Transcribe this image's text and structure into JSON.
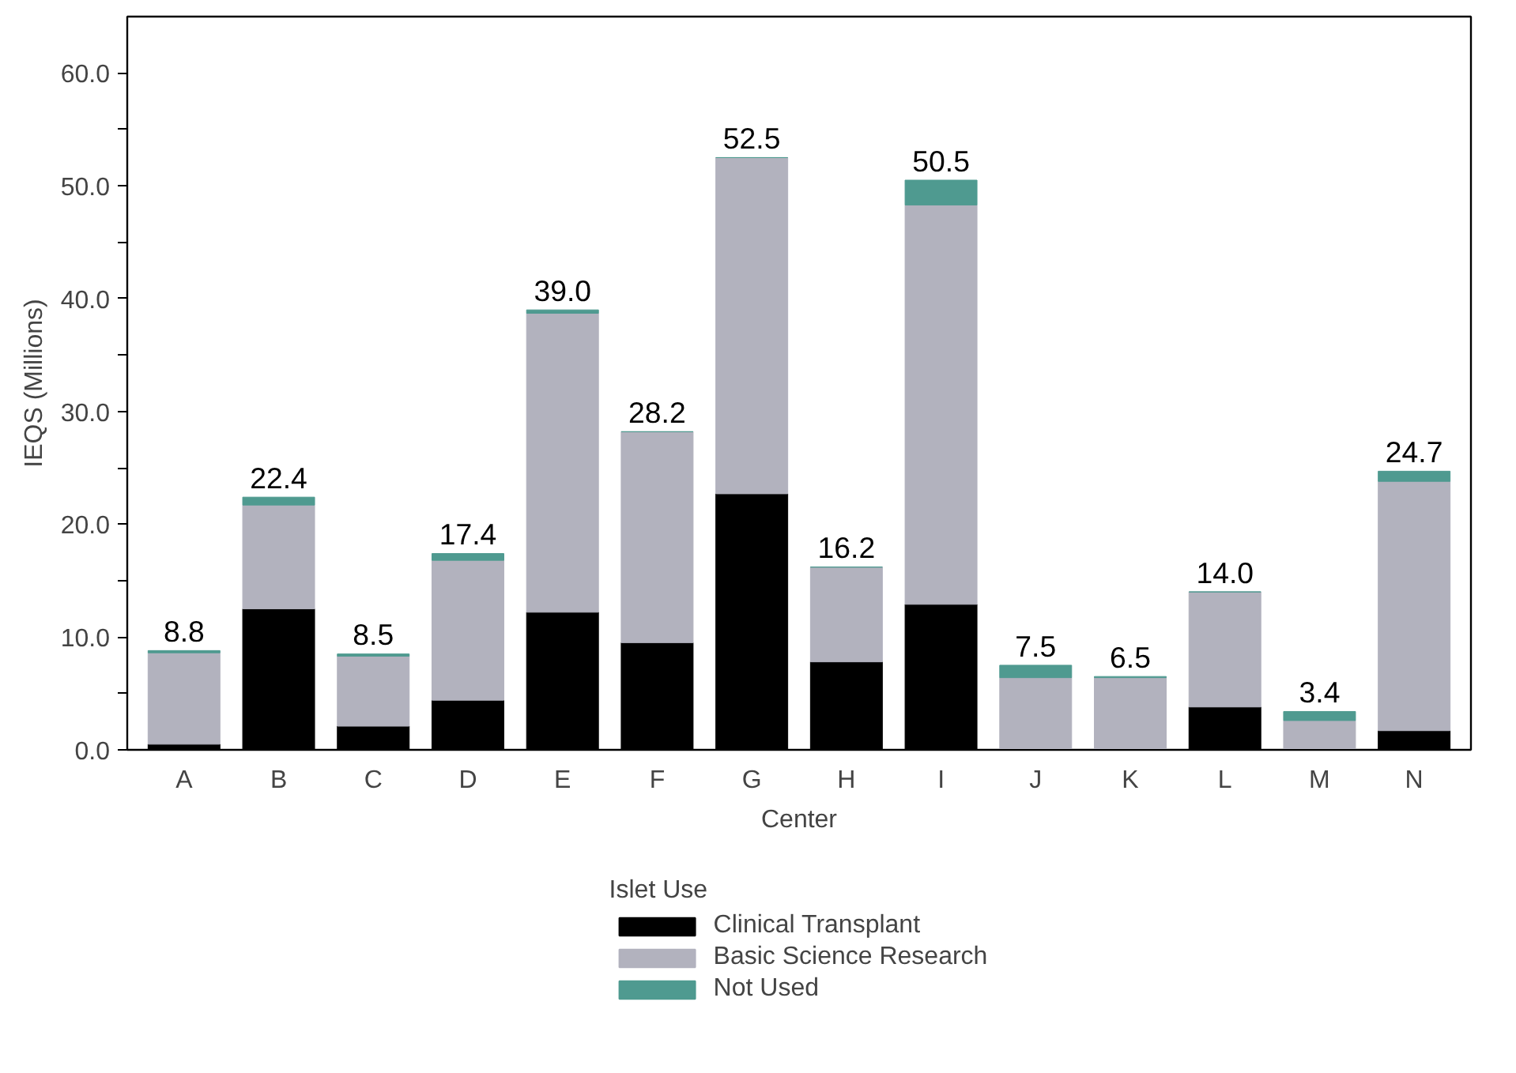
{
  "chart_data": {
    "type": "bar",
    "stacked": true,
    "xlabel": "Center",
    "ylabel": "IEQS (Millions)",
    "legend_title": "Islet Use",
    "legend": "bottom",
    "grid": false,
    "categories": [
      "A",
      "B",
      "C",
      "D",
      "E",
      "F",
      "G",
      "H",
      "I",
      "J",
      "K",
      "L",
      "M",
      "N"
    ],
    "series": [
      {
        "name": "Clinical Transplant",
        "color": "#000000",
        "values": [
          0.5,
          12.5,
          2.1,
          4.4,
          12.2,
          9.5,
          22.7,
          7.8,
          12.9,
          0,
          0,
          3.8,
          0,
          1.7
        ]
      },
      {
        "name": "Basic Science Research",
        "color": "#b2b2be",
        "values": [
          8.1,
          9.2,
          6.2,
          12.4,
          26.5,
          18.7,
          29.8,
          8.4,
          35.4,
          6.4,
          6.4,
          10.2,
          2.6,
          22.1
        ]
      },
      {
        "name": "Not Used",
        "color": "#4f9a90",
        "values": [
          0.2,
          0.7,
          0.2,
          0.6,
          0.3,
          0,
          0,
          0,
          2.2,
          1.1,
          0.1,
          0,
          0.8,
          0.9
        ]
      }
    ],
    "totals": [
      "8.8",
      "22.4",
      "8.5",
      "17.4",
      "39.0",
      "28.2",
      "52.5",
      "16.2",
      "50.5",
      "7.5",
      "6.5",
      "14.0",
      "3.4",
      "24.7"
    ],
    "ylim": [
      0,
      65
    ],
    "yticks": [
      {
        "value": 0,
        "label": "0.0"
      },
      {
        "value": 5,
        "label": null
      },
      {
        "value": 10,
        "label": "10.0"
      },
      {
        "value": 15,
        "label": null
      },
      {
        "value": 20,
        "label": "20.0"
      },
      {
        "value": 25,
        "label": null
      },
      {
        "value": 30,
        "label": "30.0"
      },
      {
        "value": 35,
        "label": null
      },
      {
        "value": 40,
        "label": "40.0"
      },
      {
        "value": 45,
        "label": null
      },
      {
        "value": 50,
        "label": "50.0"
      },
      {
        "value": 55,
        "label": null
      },
      {
        "value": 60,
        "label": "60.0"
      }
    ]
  }
}
